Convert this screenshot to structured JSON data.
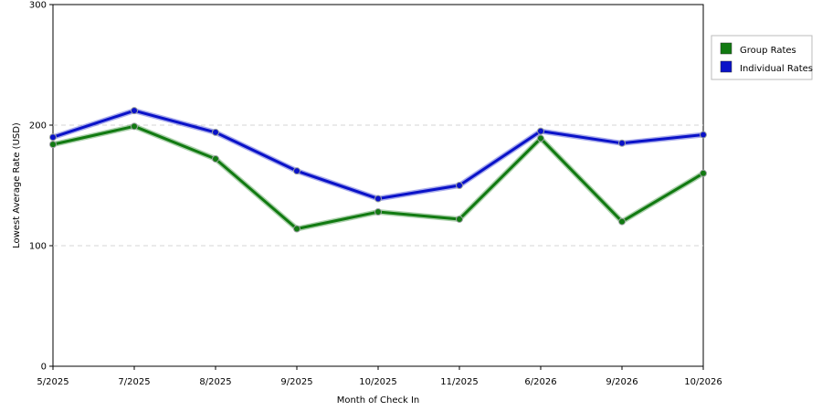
{
  "chart_data": {
    "type": "line",
    "categories": [
      "5/2025",
      "7/2025",
      "8/2025",
      "9/2025",
      "10/2025",
      "11/2025",
      "6/2026",
      "9/2026",
      "10/2026"
    ],
    "series": [
      {
        "name": "Group Rates",
        "color": "#117a11",
        "values": [
          184,
          199,
          172,
          114,
          128,
          122,
          189,
          120,
          160
        ]
      },
      {
        "name": "Individual Rates",
        "color": "#0a12c8",
        "values": [
          190,
          212,
          194,
          162,
          139,
          150,
          195,
          185,
          192
        ]
      }
    ],
    "xlabel": "Month of Check In",
    "ylabel": "Lowest Average Rate (USD)",
    "ylim": [
      0,
      300
    ],
    "yticks": [
      0,
      100,
      200,
      300
    ],
    "grid": "horizontal dashed at 100 and 200",
    "legend_position": "top-right"
  }
}
